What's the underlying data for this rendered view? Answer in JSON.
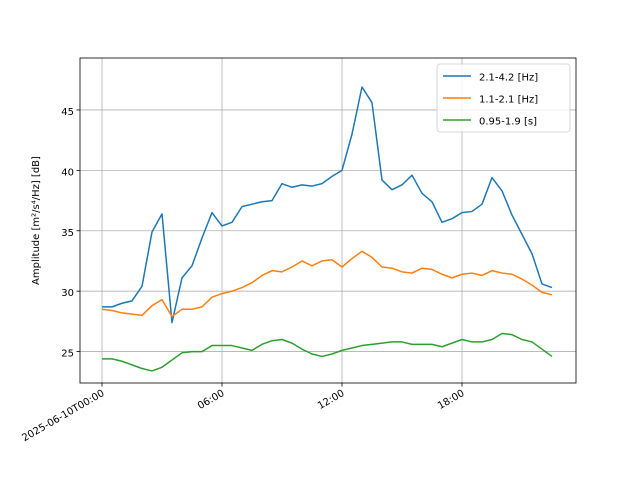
{
  "chart_data": {
    "type": "line",
    "ylabel": "Amplitude [m²/s⁴/Hz] [dB]",
    "xlabel": "",
    "ylim": [
      22.4,
      49.3
    ],
    "xlim_hours": [
      -1.1,
      23.7
    ],
    "grid": true,
    "legend_position": "top-right",
    "x_ticks": [
      {
        "hour": 0,
        "label": "2025-06-10T00:00"
      },
      {
        "hour": 6,
        "label": "06:00"
      },
      {
        "hour": 12,
        "label": "12:00"
      },
      {
        "hour": 18,
        "label": "18:00"
      }
    ],
    "y_ticks": [
      25,
      30,
      35,
      40,
      45
    ],
    "x_hours": [
      0,
      0.5,
      1,
      1.5,
      2,
      2.5,
      3,
      3.5,
      4,
      4.5,
      5,
      5.5,
      6,
      6.5,
      7,
      7.5,
      8,
      8.5,
      9,
      9.5,
      10,
      10.5,
      11,
      11.5,
      12,
      12.5,
      13,
      13.5,
      14,
      14.5,
      15,
      15.5,
      16,
      16.5,
      17,
      17.5,
      18,
      18.5,
      19,
      19.5,
      20,
      20.5,
      21,
      21.5,
      22,
      22.5
    ],
    "series": [
      {
        "name": "2.1-4.2 [Hz]",
        "color": "#1f77b4",
        "values": [
          28.7,
          28.7,
          29.0,
          29.2,
          30.4,
          34.9,
          36.4,
          27.4,
          31.1,
          32.1,
          34.4,
          36.5,
          35.4,
          35.7,
          37.0,
          37.2,
          37.4,
          37.5,
          38.9,
          38.6,
          38.8,
          38.7,
          38.9,
          39.5,
          40.0,
          43.0,
          46.9,
          45.6,
          39.2,
          38.4,
          38.8,
          39.6,
          38.1,
          37.4,
          35.7,
          36.0,
          36.5,
          36.6,
          37.2,
          39.4,
          38.3,
          36.3,
          34.7,
          33.1,
          30.6,
          30.3
        ]
      },
      {
        "name": "1.1-2.1 [Hz]",
        "color": "#ff7f0e",
        "values": [
          28.5,
          28.4,
          28.2,
          28.1,
          28.0,
          28.8,
          29.3,
          27.9,
          28.5,
          28.5,
          28.7,
          29.5,
          29.8,
          30.0,
          30.3,
          30.7,
          31.3,
          31.7,
          31.6,
          32.0,
          32.5,
          32.1,
          32.5,
          32.6,
          32.0,
          32.7,
          33.3,
          32.8,
          32.0,
          31.9,
          31.6,
          31.5,
          31.9,
          31.8,
          31.4,
          31.1,
          31.4,
          31.5,
          31.3,
          31.7,
          31.5,
          31.4,
          31.0,
          30.5,
          29.9,
          29.7
        ]
      },
      {
        "name": "0.95-1.9 [s]",
        "color": "#2ca02c",
        "values": [
          24.4,
          24.4,
          24.2,
          23.9,
          23.6,
          23.4,
          23.7,
          24.3,
          24.9,
          25.0,
          25.0,
          25.5,
          25.5,
          25.5,
          25.3,
          25.1,
          25.6,
          25.9,
          26.0,
          25.7,
          25.2,
          24.8,
          24.6,
          24.8,
          25.1,
          25.3,
          25.5,
          25.6,
          25.7,
          25.8,
          25.8,
          25.6,
          25.6,
          25.6,
          25.4,
          25.7,
          26.0,
          25.8,
          25.8,
          26.0,
          26.5,
          26.4,
          26.0,
          25.8,
          25.2,
          24.6
        ]
      }
    ]
  }
}
